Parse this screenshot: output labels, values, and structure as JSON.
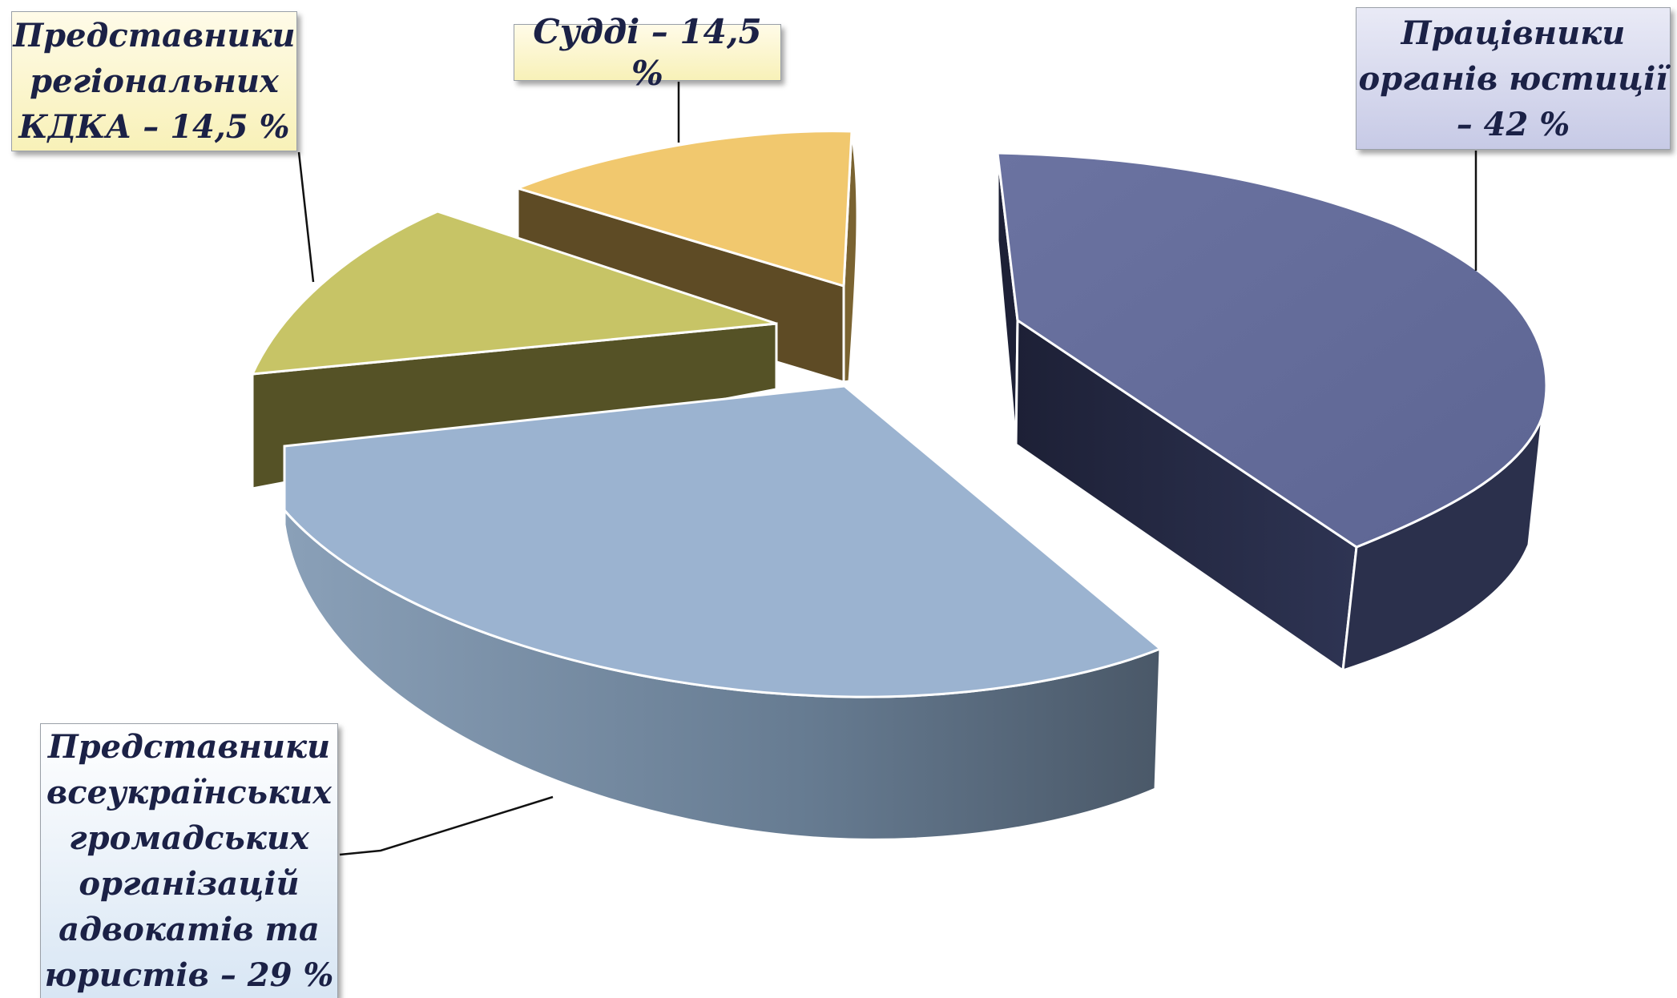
{
  "chart_data": {
    "type": "pie",
    "style": "3d-exploded",
    "title": "",
    "labels": [
      "Працівники органів юстиції – 42 %",
      "Представники всеукраїнських громадських організацій адвокатів та юристів – 29 %",
      "Представники регіональних КДКА – 14,5 %",
      "Судді – 14,5 %"
    ],
    "values": [
      42,
      29,
      14.5,
      14.5
    ],
    "colors": {
      "justice_top": "#6b73a1",
      "justice_side": "#262b44",
      "lawyers_top": "#9bb3d0",
      "lawyers_side": "#6f8499",
      "kdka_top": "#c7c466",
      "kdka_side": "#555226",
      "judges_top": "#f1c86e",
      "judges_side": "#665229"
    },
    "legend": "none",
    "grid": false
  },
  "callouts": {
    "kdka": "Представники\nрегіональних\nКДКА – 14,5 %",
    "judges": "Судді – 14,5 %",
    "justice": "Працівники\nорганів юстиції\n– 42 %",
    "lawyers": "Представники\nвсеукраїнських\nгромадських\nорганізацій\nадвокатів та\nюристів – 29 %"
  }
}
